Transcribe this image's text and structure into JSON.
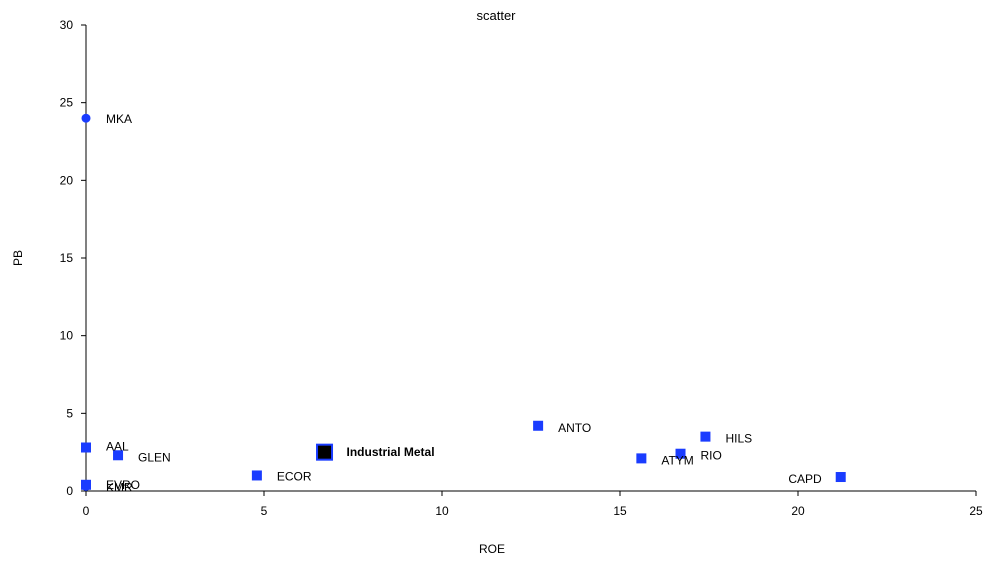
{
  "chart_data": {
    "type": "scatter",
    "title": "scatter",
    "xlabel": "ROE",
    "ylabel": "PB",
    "xlim": [
      0,
      25
    ],
    "ylim": [
      0,
      30
    ],
    "xticks": [
      0,
      5,
      10,
      15,
      20,
      25
    ],
    "yticks": [
      0,
      5,
      10,
      15,
      20,
      25,
      30
    ],
    "grid": false,
    "colors": {
      "point": "#1a3cff",
      "highlight": "#000000",
      "axis": "#000000"
    },
    "points": [
      {
        "label": "MKA",
        "x": 0.0,
        "y": 24.0,
        "marker": "circle"
      },
      {
        "label": "AAL",
        "x": 0.0,
        "y": 2.8,
        "marker": "square"
      },
      {
        "label": "GLEN",
        "x": 0.9,
        "y": 2.3,
        "marker": "square"
      },
      {
        "label": "KMR",
        "x": 0.0,
        "y": 0.3,
        "marker": "circle"
      },
      {
        "label": "EVRO",
        "x": 0.0,
        "y": 0.4,
        "marker": "square"
      },
      {
        "label": "ECOR",
        "x": 4.8,
        "y": 1.0,
        "marker": "square"
      },
      {
        "label": "Industrial Metal",
        "x": 6.7,
        "y": 2.5,
        "marker": "square-highlight"
      },
      {
        "label": "ANTO",
        "x": 12.7,
        "y": 4.2,
        "marker": "square"
      },
      {
        "label": "ATYM",
        "x": 15.6,
        "y": 2.1,
        "marker": "square"
      },
      {
        "label": "RIO",
        "x": 16.7,
        "y": 2.4,
        "marker": "square"
      },
      {
        "label": "HILS",
        "x": 17.4,
        "y": 3.5,
        "marker": "square"
      },
      {
        "label": "CAPD",
        "x": 21.2,
        "y": 0.9,
        "marker": "square"
      }
    ]
  }
}
